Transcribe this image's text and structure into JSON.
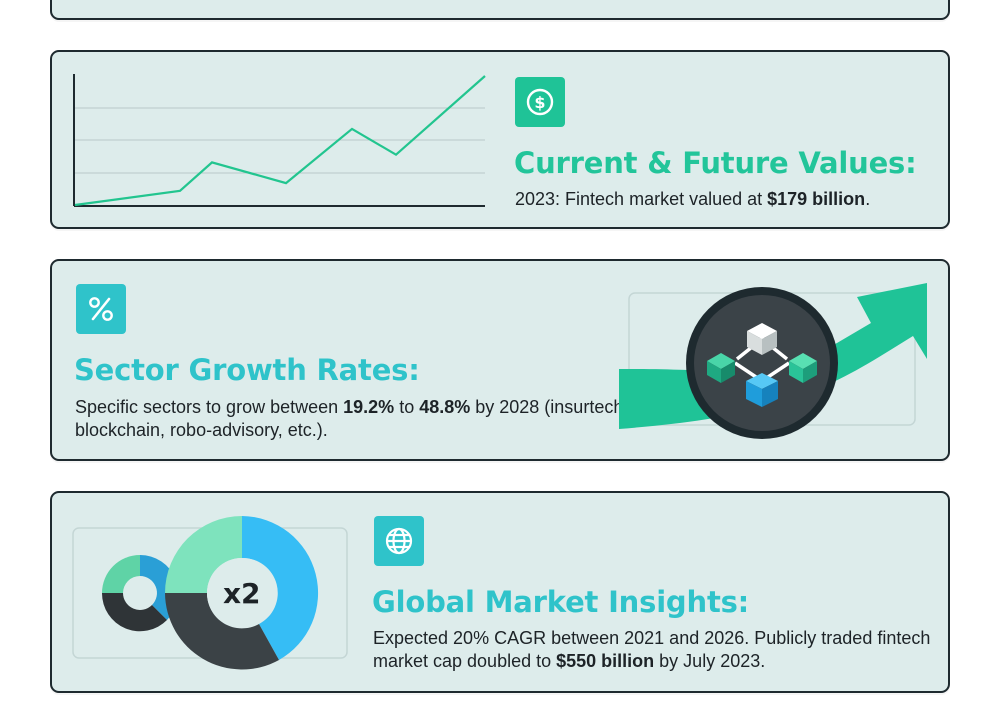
{
  "colors": {
    "card_bg": "#ddeceb",
    "card_border": "#1e2a2f",
    "teal_heading": "#2fc3ca",
    "green_heading": "#22c59a",
    "icon_green": "#1fc397",
    "icon_teal": "#2fc3ca",
    "line_green": "#22c58f"
  },
  "sections": {
    "current_future": {
      "icon": "dollar-coin-icon",
      "heading": "Current & Future Values:",
      "text_pre": "2023: Fintech market valued at ",
      "text_bold": "$179 billion",
      "text_post": ".",
      "line_chart_values": [
        0.0,
        0.11,
        0.33,
        0.17,
        0.59,
        0.39,
        1.0
      ]
    },
    "sector_growth": {
      "icon": "percent-icon",
      "heading": "Sector Growth Rates:",
      "text_pre": "Specific sectors to grow between ",
      "bold_1": "19.2%",
      "text_mid": " to ",
      "bold_2": "48.8%",
      "text_post": " by 2028 (insurtech, blockchain, robo-advisory, etc.).",
      "illustration": "blockchain-cubes-growth-arrow"
    },
    "global_market": {
      "icon": "globe-icon",
      "heading": "Global Market Insights:",
      "text_pre": "Expected 20% CAGR between 2021 and 2026. Publicly traded fintech market cap doubled to ",
      "text_bold": "$550 billion",
      "text_post": " by July 2023.",
      "donut_label": "x2"
    }
  }
}
